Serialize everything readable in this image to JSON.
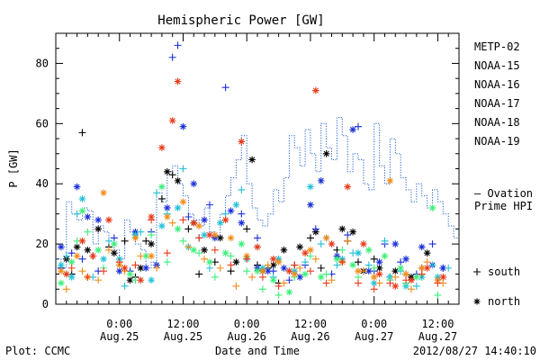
{
  "chart_data": {
    "type": "scatter",
    "title": "Hemispheric Power [GW]",
    "ylabel": "P [GW]",
    "xlabel": "Date and Time",
    "ylim": [
      0,
      90
    ],
    "yticks": [
      0,
      20,
      40,
      60,
      80
    ],
    "x_unit": "hours since 2012-08-24 12:00",
    "xlim": [
      0,
      76
    ],
    "xticks": [
      {
        "x": 12,
        "time": "0:00",
        "date": "Aug.25"
      },
      {
        "x": 24,
        "time": "12:00",
        "date": "Aug.25"
      },
      {
        "x": 36,
        "time": "0:00",
        "date": "Aug.26"
      },
      {
        "x": 48,
        "time": "12:00",
        "date": "Aug.26"
      },
      {
        "x": 60,
        "time": "0:00",
        "date": "Aug.27"
      },
      {
        "x": 72,
        "time": "12:00",
        "date": "Aug.27"
      }
    ],
    "footer_left": "Plot: CCMC",
    "timestamp": "2012/08/27 14:40:10",
    "marker_legend": [
      {
        "symbol": "+",
        "label": "south"
      },
      {
        "symbol": "*",
        "label": "north"
      }
    ],
    "ovation": {
      "label_line1": "— Ovation",
      "label_line2": "Prime HPI",
      "color": "#1f5fd6",
      "x": [
        0,
        1,
        2,
        3,
        4,
        5,
        6,
        7,
        8,
        9,
        10,
        11,
        12,
        13,
        14,
        15,
        16,
        17,
        18,
        19,
        20,
        21,
        22,
        23,
        24,
        25,
        26,
        27,
        28,
        29,
        30,
        31,
        32,
        33,
        34,
        35,
        36,
        37,
        38,
        39,
        40,
        41,
        42,
        43,
        44,
        45,
        46,
        47,
        48,
        49,
        50,
        51,
        52,
        53,
        54,
        55,
        56,
        57,
        58,
        59,
        60,
        61,
        62,
        63,
        64,
        65,
        66,
        67,
        68,
        69,
        70,
        71,
        72,
        73,
        74,
        75
      ],
      "y": [
        15,
        12,
        34,
        30,
        28,
        32,
        31,
        20,
        26,
        24,
        22,
        18,
        15,
        28,
        24,
        20,
        18,
        12,
        14,
        37,
        34,
        44,
        46,
        40,
        36,
        30,
        28,
        26,
        32,
        24,
        22,
        30,
        36,
        42,
        48,
        56,
        40,
        32,
        28,
        26,
        30,
        38,
        34,
        42,
        56,
        52,
        46,
        58,
        50,
        44,
        60,
        52,
        48,
        62,
        56,
        44,
        50,
        48,
        40,
        38,
        60,
        46,
        40,
        55,
        50,
        42,
        38,
        34,
        40,
        36,
        32,
        38,
        34,
        30,
        26,
        22
      ]
    },
    "series": [
      {
        "name": "METP-02",
        "color": "#000000",
        "south_x": [
          1,
          3,
          5,
          7,
          10,
          13,
          15,
          17,
          20,
          22,
          25,
          27,
          30,
          33,
          36,
          38,
          40,
          42,
          45,
          48,
          50,
          53,
          55,
          57,
          60,
          63,
          66,
          69
        ],
        "south_y": [
          12,
          10,
          57,
          16,
          19,
          21,
          9,
          21,
          35,
          43,
          25,
          10,
          14,
          11,
          25,
          13,
          12,
          7,
          13,
          22,
          12,
          18,
          21,
          14,
          15,
          9,
          10,
          12
        ],
        "north_x": [
          2,
          4,
          6,
          8,
          11,
          14,
          16,
          18,
          21,
          23,
          26,
          28,
          31,
          34,
          37,
          39,
          41,
          43,
          46,
          49,
          51,
          54,
          56,
          58,
          61,
          64,
          67,
          70
        ],
        "north_y": [
          15,
          19,
          18,
          25,
          17,
          8,
          12,
          20,
          44,
          41,
          27,
          18,
          22,
          14,
          48,
          11,
          13,
          18,
          19,
          24,
          50,
          25,
          24,
          11,
          12,
          11,
          9,
          17
        ]
      },
      {
        "name": "NOAA-15",
        "color": "#1a2fd8",
        "south_x": [
          1,
          3,
          5,
          8,
          11,
          14,
          18,
          22,
          23,
          25,
          27,
          29,
          32,
          35,
          38,
          41,
          44,
          47,
          49,
          52,
          55,
          57,
          60,
          62,
          65,
          68,
          71,
          73
        ],
        "south_y": [
          12,
          17,
          15,
          11,
          22,
          11,
          24,
          82,
          86,
          29,
          22,
          33,
          72,
          30,
          22,
          11,
          8,
          13,
          25,
          10,
          23,
          59,
          11,
          20,
          14,
          10,
          20,
          12
        ],
        "north_x": [
          1,
          4,
          6,
          8,
          12,
          15,
          17,
          19,
          21,
          24,
          26,
          28,
          30,
          33,
          35,
          38,
          40,
          43,
          46,
          48,
          50,
          53,
          56,
          59,
          61,
          64,
          66,
          69,
          71,
          73
        ],
        "north_y": [
          19,
          39,
          29,
          28,
          11,
          24,
          12,
          13,
          32,
          59,
          40,
          28,
          22,
          31,
          27,
          12,
          11,
          12,
          9,
          33,
          41,
          16,
          58,
          11,
          14,
          20,
          15,
          19,
          13,
          12
        ]
      },
      {
        "name": "NOAA-16",
        "color": "#22c0d8",
        "south_x": [
          2,
          4,
          7,
          10,
          13,
          16,
          19,
          21,
          24,
          27,
          29,
          32,
          35,
          38,
          41,
          44,
          47,
          50,
          53,
          56,
          59,
          62,
          65,
          68,
          71,
          74
        ],
        "south_y": [
          16,
          30,
          9,
          21,
          6,
          24,
          37,
          30,
          45,
          22,
          12,
          30,
          38,
          19,
          9,
          11,
          14,
          20,
          13,
          17,
          13,
          21,
          11,
          6,
          13,
          12
        ],
        "north_x": [
          1,
          3,
          5,
          9,
          12,
          15,
          18,
          20,
          23,
          25,
          28,
          31,
          34,
          36,
          39,
          42,
          45,
          48,
          51,
          54,
          57,
          60,
          63,
          66,
          69,
          72
        ],
        "north_y": [
          13,
          9,
          35,
          15,
          15,
          23,
          8,
          26,
          32,
          19,
          23,
          27,
          33,
          15,
          12,
          15,
          11,
          39,
          22,
          15,
          17,
          7,
          9,
          6,
          9,
          9
        ]
      },
      {
        "name": "NOAA-17",
        "color": "#3cf07a",
        "south_x": [
          2,
          4,
          6,
          9,
          12,
          15,
          18,
          21,
          24,
          27,
          30,
          33,
          36,
          39,
          42,
          45,
          48,
          51,
          54,
          57,
          60,
          63,
          66,
          69,
          72
        ],
        "south_y": [
          10,
          21,
          24,
          12,
          13,
          8,
          23,
          14,
          21,
          17,
          9,
          16,
          11,
          5,
          3,
          9,
          16,
          10,
          18,
          9,
          12,
          8,
          7,
          10,
          3
        ],
        "north_x": [
          1,
          3,
          5,
          8,
          11,
          14,
          17,
          20,
          23,
          26,
          29,
          32,
          35,
          38,
          41,
          44,
          47,
          50,
          53,
          56,
          59,
          62,
          65,
          68,
          71
        ],
        "north_y": [
          7,
          14,
          31,
          18,
          20,
          10,
          16,
          39,
          25,
          18,
          14,
          17,
          20,
          11,
          8,
          4,
          10,
          9,
          15,
          13,
          18,
          16,
          12,
          9,
          32
        ]
      },
      {
        "name": "NOAA-18",
        "color": "#f08c18",
        "south_x": [
          2,
          5,
          8,
          10,
          13,
          16,
          19,
          22,
          25,
          28,
          31,
          34,
          37,
          40,
          43,
          46,
          49,
          52,
          55,
          58,
          61,
          64,
          67,
          70,
          73
        ],
        "south_y": [
          5,
          11,
          8,
          18,
          11,
          16,
          12,
          27,
          19,
          15,
          12,
          6,
          9,
          13,
          7,
          12,
          15,
          8,
          21,
          11,
          7,
          9,
          5,
          14,
          7
        ],
        "north_x": [
          1,
          4,
          6,
          9,
          12,
          15,
          18,
          21,
          24,
          27,
          30,
          33,
          36,
          39,
          42,
          45,
          48,
          51,
          54,
          57,
          60,
          63,
          66,
          69,
          72
        ],
        "north_y": [
          11,
          16,
          9,
          37,
          13,
          22,
          16,
          29,
          34,
          26,
          23,
          22,
          16,
          11,
          14,
          10,
          18,
          22,
          14,
          11,
          9,
          41,
          10,
          12,
          8
        ]
      },
      {
        "name": "NOAA-19",
        "color": "#e83a1a",
        "south_x": [
          3,
          6,
          9,
          12,
          15,
          18,
          21,
          24,
          27,
          30,
          33,
          36,
          39,
          42,
          45,
          48,
          51,
          54,
          57,
          60,
          63,
          66,
          69,
          72
        ],
        "south_y": [
          12,
          9,
          11,
          14,
          13,
          28,
          17,
          28,
          22,
          18,
          13,
          15,
          9,
          6,
          13,
          11,
          7,
          14,
          7,
          5,
          7,
          8,
          10,
          7
        ],
        "north_x": [
          2,
          5,
          7,
          10,
          13,
          16,
          18,
          20,
          22,
          23,
          26,
          29,
          32,
          35,
          38,
          41,
          44,
          47,
          49,
          52,
          55,
          58,
          61,
          64,
          67,
          70,
          73
        ],
        "north_y": [
          10,
          21,
          16,
          28,
          12,
          8,
          29,
          52,
          61,
          74,
          27,
          23,
          28,
          54,
          19,
          15,
          11,
          17,
          71,
          20,
          39,
          20,
          10,
          6,
          8,
          12,
          9
        ]
      }
    ]
  }
}
